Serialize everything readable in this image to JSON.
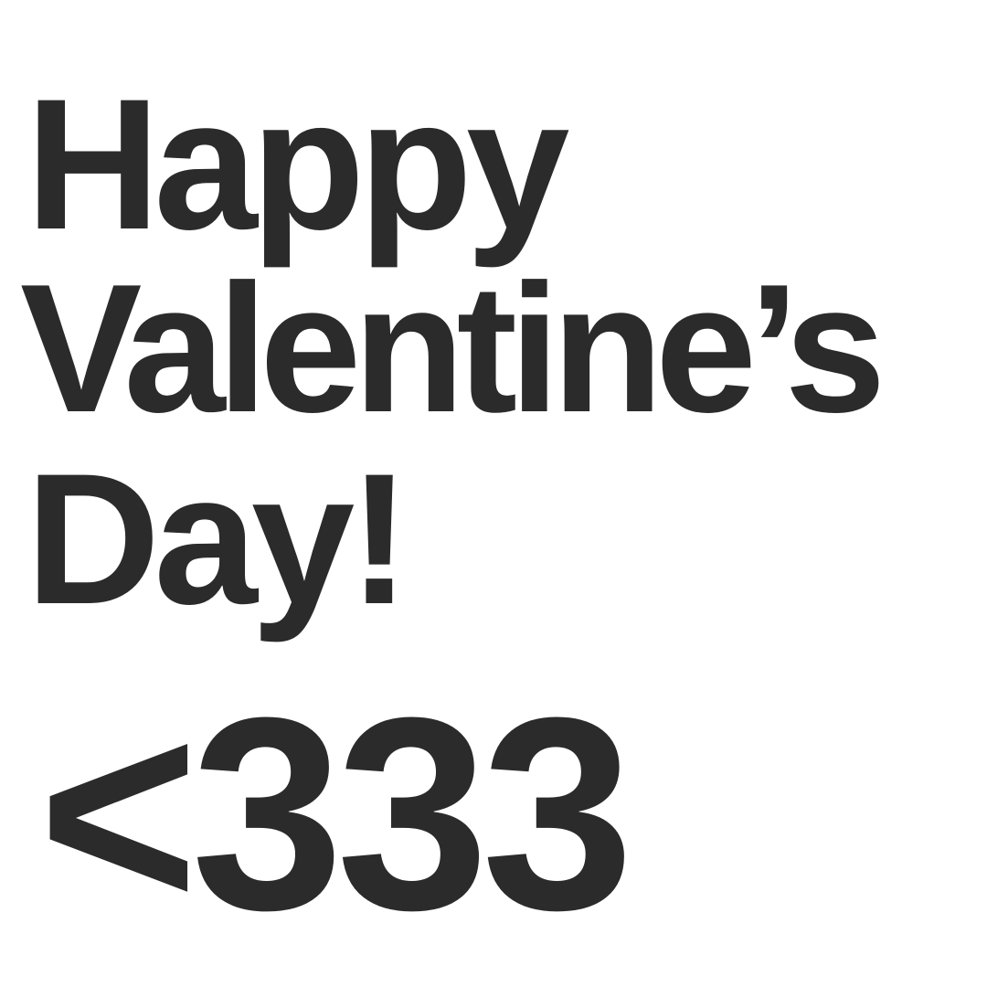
{
  "message": {
    "line1": "Happy",
    "line2": "Valentine’s",
    "line3": "Day!",
    "hearts": "<333"
  },
  "colors": {
    "text": "#2b2b2b",
    "background": "#ffffff"
  }
}
